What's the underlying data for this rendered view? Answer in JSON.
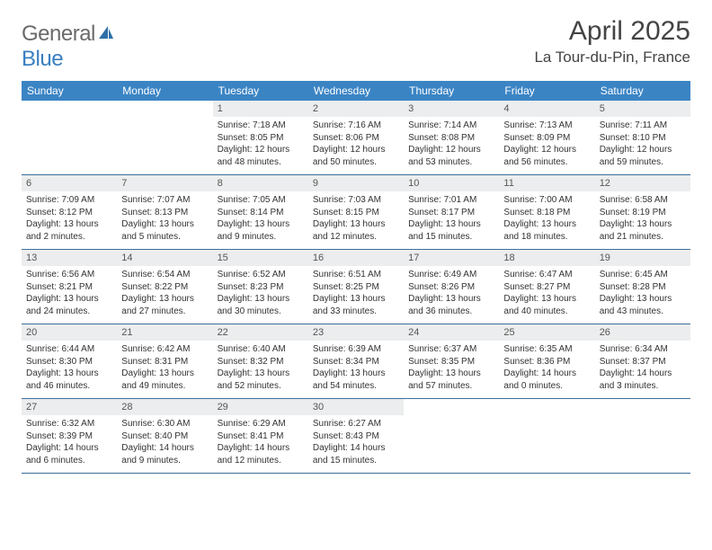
{
  "logo": {
    "general": "General",
    "blue": "Blue"
  },
  "title": "April 2025",
  "location": "La Tour-du-Pin, France",
  "colors": {
    "header_bg": "#3b84c4",
    "header_text": "#ffffff",
    "daynum_bg": "#ecedee",
    "border": "#3b6f9c",
    "logo_gray": "#6a6a6a",
    "logo_blue": "#3a7fc1"
  },
  "weekdays": [
    "Sunday",
    "Monday",
    "Tuesday",
    "Wednesday",
    "Thursday",
    "Friday",
    "Saturday"
  ],
  "weeks": [
    [
      {
        "n": "",
        "empty": true
      },
      {
        "n": "",
        "empty": true
      },
      {
        "n": "1",
        "sunrise": "Sunrise: 7:18 AM",
        "sunset": "Sunset: 8:05 PM",
        "day1": "Daylight: 12 hours",
        "day2": "and 48 minutes."
      },
      {
        "n": "2",
        "sunrise": "Sunrise: 7:16 AM",
        "sunset": "Sunset: 8:06 PM",
        "day1": "Daylight: 12 hours",
        "day2": "and 50 minutes."
      },
      {
        "n": "3",
        "sunrise": "Sunrise: 7:14 AM",
        "sunset": "Sunset: 8:08 PM",
        "day1": "Daylight: 12 hours",
        "day2": "and 53 minutes."
      },
      {
        "n": "4",
        "sunrise": "Sunrise: 7:13 AM",
        "sunset": "Sunset: 8:09 PM",
        "day1": "Daylight: 12 hours",
        "day2": "and 56 minutes."
      },
      {
        "n": "5",
        "sunrise": "Sunrise: 7:11 AM",
        "sunset": "Sunset: 8:10 PM",
        "day1": "Daylight: 12 hours",
        "day2": "and 59 minutes."
      }
    ],
    [
      {
        "n": "6",
        "sunrise": "Sunrise: 7:09 AM",
        "sunset": "Sunset: 8:12 PM",
        "day1": "Daylight: 13 hours",
        "day2": "and 2 minutes."
      },
      {
        "n": "7",
        "sunrise": "Sunrise: 7:07 AM",
        "sunset": "Sunset: 8:13 PM",
        "day1": "Daylight: 13 hours",
        "day2": "and 5 minutes."
      },
      {
        "n": "8",
        "sunrise": "Sunrise: 7:05 AM",
        "sunset": "Sunset: 8:14 PM",
        "day1": "Daylight: 13 hours",
        "day2": "and 9 minutes."
      },
      {
        "n": "9",
        "sunrise": "Sunrise: 7:03 AM",
        "sunset": "Sunset: 8:15 PM",
        "day1": "Daylight: 13 hours",
        "day2": "and 12 minutes."
      },
      {
        "n": "10",
        "sunrise": "Sunrise: 7:01 AM",
        "sunset": "Sunset: 8:17 PM",
        "day1": "Daylight: 13 hours",
        "day2": "and 15 minutes."
      },
      {
        "n": "11",
        "sunrise": "Sunrise: 7:00 AM",
        "sunset": "Sunset: 8:18 PM",
        "day1": "Daylight: 13 hours",
        "day2": "and 18 minutes."
      },
      {
        "n": "12",
        "sunrise": "Sunrise: 6:58 AM",
        "sunset": "Sunset: 8:19 PM",
        "day1": "Daylight: 13 hours",
        "day2": "and 21 minutes."
      }
    ],
    [
      {
        "n": "13",
        "sunrise": "Sunrise: 6:56 AM",
        "sunset": "Sunset: 8:21 PM",
        "day1": "Daylight: 13 hours",
        "day2": "and 24 minutes."
      },
      {
        "n": "14",
        "sunrise": "Sunrise: 6:54 AM",
        "sunset": "Sunset: 8:22 PM",
        "day1": "Daylight: 13 hours",
        "day2": "and 27 minutes."
      },
      {
        "n": "15",
        "sunrise": "Sunrise: 6:52 AM",
        "sunset": "Sunset: 8:23 PM",
        "day1": "Daylight: 13 hours",
        "day2": "and 30 minutes."
      },
      {
        "n": "16",
        "sunrise": "Sunrise: 6:51 AM",
        "sunset": "Sunset: 8:25 PM",
        "day1": "Daylight: 13 hours",
        "day2": "and 33 minutes."
      },
      {
        "n": "17",
        "sunrise": "Sunrise: 6:49 AM",
        "sunset": "Sunset: 8:26 PM",
        "day1": "Daylight: 13 hours",
        "day2": "and 36 minutes."
      },
      {
        "n": "18",
        "sunrise": "Sunrise: 6:47 AM",
        "sunset": "Sunset: 8:27 PM",
        "day1": "Daylight: 13 hours",
        "day2": "and 40 minutes."
      },
      {
        "n": "19",
        "sunrise": "Sunrise: 6:45 AM",
        "sunset": "Sunset: 8:28 PM",
        "day1": "Daylight: 13 hours",
        "day2": "and 43 minutes."
      }
    ],
    [
      {
        "n": "20",
        "sunrise": "Sunrise: 6:44 AM",
        "sunset": "Sunset: 8:30 PM",
        "day1": "Daylight: 13 hours",
        "day2": "and 46 minutes."
      },
      {
        "n": "21",
        "sunrise": "Sunrise: 6:42 AM",
        "sunset": "Sunset: 8:31 PM",
        "day1": "Daylight: 13 hours",
        "day2": "and 49 minutes."
      },
      {
        "n": "22",
        "sunrise": "Sunrise: 6:40 AM",
        "sunset": "Sunset: 8:32 PM",
        "day1": "Daylight: 13 hours",
        "day2": "and 52 minutes."
      },
      {
        "n": "23",
        "sunrise": "Sunrise: 6:39 AM",
        "sunset": "Sunset: 8:34 PM",
        "day1": "Daylight: 13 hours",
        "day2": "and 54 minutes."
      },
      {
        "n": "24",
        "sunrise": "Sunrise: 6:37 AM",
        "sunset": "Sunset: 8:35 PM",
        "day1": "Daylight: 13 hours",
        "day2": "and 57 minutes."
      },
      {
        "n": "25",
        "sunrise": "Sunrise: 6:35 AM",
        "sunset": "Sunset: 8:36 PM",
        "day1": "Daylight: 14 hours",
        "day2": "and 0 minutes."
      },
      {
        "n": "26",
        "sunrise": "Sunrise: 6:34 AM",
        "sunset": "Sunset: 8:37 PM",
        "day1": "Daylight: 14 hours",
        "day2": "and 3 minutes."
      }
    ],
    [
      {
        "n": "27",
        "sunrise": "Sunrise: 6:32 AM",
        "sunset": "Sunset: 8:39 PM",
        "day1": "Daylight: 14 hours",
        "day2": "and 6 minutes."
      },
      {
        "n": "28",
        "sunrise": "Sunrise: 6:30 AM",
        "sunset": "Sunset: 8:40 PM",
        "day1": "Daylight: 14 hours",
        "day2": "and 9 minutes."
      },
      {
        "n": "29",
        "sunrise": "Sunrise: 6:29 AM",
        "sunset": "Sunset: 8:41 PM",
        "day1": "Daylight: 14 hours",
        "day2": "and 12 minutes."
      },
      {
        "n": "30",
        "sunrise": "Sunrise: 6:27 AM",
        "sunset": "Sunset: 8:43 PM",
        "day1": "Daylight: 14 hours",
        "day2": "and 15 minutes."
      },
      {
        "n": "",
        "empty": true
      },
      {
        "n": "",
        "empty": true
      },
      {
        "n": "",
        "empty": true
      }
    ]
  ]
}
